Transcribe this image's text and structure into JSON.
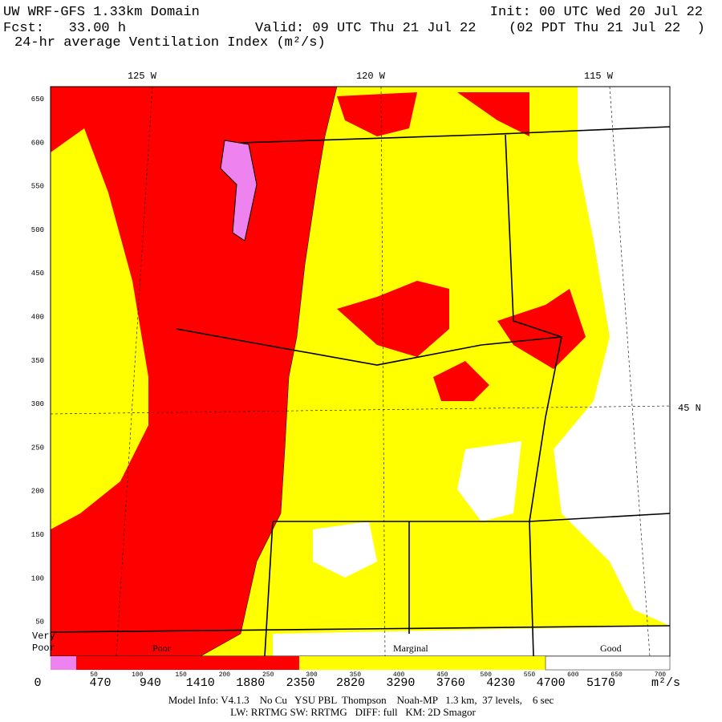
{
  "header": {
    "domain": "UW WRF-GFS 1.33km Domain",
    "init": "Init: 00 UTC Wed 20 Jul 22",
    "forecast": "Fcst:   33.00 h",
    "valid": "Valid: 09 UTC Thu 21 Jul 22",
    "local": "(02 PDT Thu 21 Jul 22  )",
    "title": "24-hr average Ventilation Index (m²/s)"
  },
  "map": {
    "longitudes": [
      "125 W",
      "120 W",
      "115 W"
    ],
    "latitude": "45 N",
    "y_grid_labels": [
      "650",
      "600",
      "550",
      "500",
      "450",
      "400",
      "350",
      "300",
      "250",
      "200",
      "150",
      "100",
      "50"
    ],
    "x_grid_labels": [
      "50",
      "100",
      "150",
      "200",
      "250",
      "300",
      "350",
      "400",
      "450",
      "500",
      "550",
      "600",
      "650",
      "700"
    ]
  },
  "legend": {
    "categories": [
      "Very Poor",
      "Poor",
      "Marginal",
      "Good"
    ],
    "levels": [
      "0",
      "470",
      "940",
      "1410",
      "1880",
      "2350",
      "2820",
      "3290",
      "3760",
      "4230",
      "4700",
      "5170"
    ],
    "unit": "m²/s"
  },
  "footer": {
    "line1": "Model Info: V4.1.3    No Cu   YSU PBL  Thompson    Noah-MP   1.3 km,  37 levels,    6 sec",
    "line2": "LW: RRTMG SW: RRTMG   DIFF: full   KM: 2D Smagor"
  }
}
